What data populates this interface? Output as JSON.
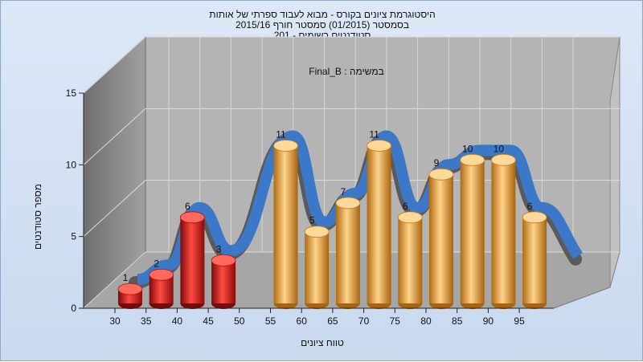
{
  "titles": {
    "line1": "היסטוגרמת ציונים בקורס - מבוא לעבוד ספרתי של אותות",
    "line2": "בסמסטר  (01/2015)  סמסטר חורף 2015/16",
    "line3": "סטודנטים רשומים - 201"
  },
  "colors": {
    "failing_bar": "#d8191c",
    "passing_bar": "#e3a23a",
    "ribbon": "#3b78c8",
    "wall": "#8f8f8f",
    "floor": "#a6a6a6"
  },
  "chart_data": {
    "type": "bar",
    "title": "Final_B : במשימה",
    "xlabel": "טווח ציונים",
    "ylabel": "מספר סטודנטים",
    "ylim": [
      0,
      15
    ],
    "yticks": [
      0,
      5,
      10,
      15
    ],
    "xticks": [
      30,
      35,
      40,
      45,
      50,
      55,
      60,
      65,
      70,
      75,
      80,
      85,
      90,
      95
    ],
    "grid": true,
    "bars": [
      {
        "x": 30,
        "value": 1,
        "group": "failing"
      },
      {
        "x": 35,
        "value": 2,
        "group": "failing"
      },
      {
        "x": 40,
        "value": 6,
        "group": "failing"
      },
      {
        "x": 45,
        "value": 3,
        "group": "failing"
      },
      {
        "x": 55,
        "value": 11,
        "group": "passing"
      },
      {
        "x": 60,
        "value": 5,
        "group": "passing"
      },
      {
        "x": 65,
        "value": 7,
        "group": "passing"
      },
      {
        "x": 70,
        "value": 11,
        "group": "passing"
      },
      {
        "x": 75,
        "value": 6,
        "group": "passing"
      },
      {
        "x": 80,
        "value": 9,
        "group": "passing"
      },
      {
        "x": 85,
        "value": 10,
        "group": "passing"
      },
      {
        "x": 90,
        "value": 10,
        "group": "passing"
      },
      {
        "x": 95,
        "value": 6,
        "group": "passing"
      }
    ]
  }
}
